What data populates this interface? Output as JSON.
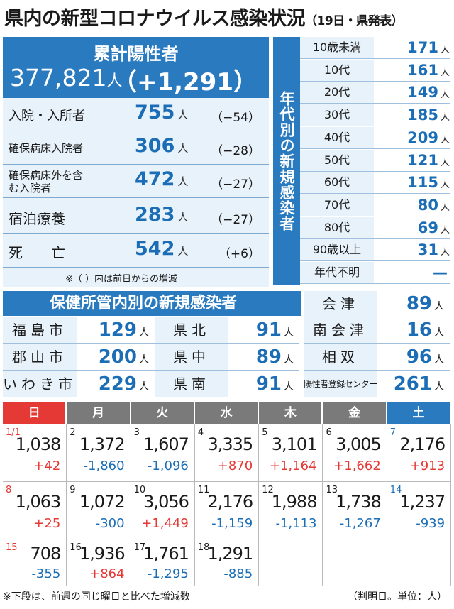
{
  "title": "県内の新型コロナウイルス感染状況",
  "subtitle": "（19日・県発表）",
  "cumulative": {
    "label": "累計陽性者",
    "total": "377,821",
    "unit": "人",
    "diff": "（+1,291）"
  },
  "status_rows": [
    {
      "label": "入院・入所者",
      "value": "755",
      "unit": "人",
      "change": "（−54）"
    },
    {
      "label": "確保病床入院者",
      "value": "306",
      "unit": "人",
      "change": "（−28）"
    },
    {
      "label": "確保病床外を含む入院者",
      "value": "472",
      "unit": "人",
      "change": "（−27）"
    },
    {
      "label": "宿泊療養",
      "value": "283",
      "unit": "人",
      "change": "（−27）"
    },
    {
      "label": "死　　亡",
      "value": "542",
      "unit": "人",
      "change": "（+6）"
    }
  ],
  "status_note": "※（ ）内は前日からの増減",
  "age_title": "年代別の新規感染者",
  "age_rows": [
    {
      "label": "10歳未満",
      "value": "171",
      "unit": "人"
    },
    {
      "label": "10代",
      "value": "161",
      "unit": "人"
    },
    {
      "label": "20代",
      "value": "149",
      "unit": "人"
    },
    {
      "label": "30代",
      "value": "185",
      "unit": "人"
    },
    {
      "label": "40代",
      "value": "209",
      "unit": "人"
    },
    {
      "label": "50代",
      "value": "121",
      "unit": "人"
    },
    {
      "label": "60代",
      "value": "115",
      "unit": "人"
    },
    {
      "label": "70代",
      "value": "80",
      "unit": "人"
    },
    {
      "label": "80代",
      "value": "69",
      "unit": "人"
    },
    {
      "label": "90歳以上",
      "value": "31",
      "unit": "人"
    },
    {
      "label": "年代不明",
      "value": "—",
      "unit": ""
    }
  ],
  "hokenjo_title": "保健所管内別の新規感染者",
  "hokenjo": [
    {
      "name": "福島市",
      "value": "129",
      "unit": "人"
    },
    {
      "name": "郡山市",
      "value": "200",
      "unit": "人"
    },
    {
      "name": "いわき市",
      "value": "229",
      "unit": "人"
    },
    {
      "name": "県北",
      "value": "91",
      "unit": "人"
    },
    {
      "name": "県中",
      "value": "89",
      "unit": "人"
    },
    {
      "name": "県南",
      "value": "91",
      "unit": "人"
    },
    {
      "name": "会津",
      "value": "89",
      "unit": "人"
    },
    {
      "name": "南会津",
      "value": "16",
      "unit": "人"
    },
    {
      "name": "相双",
      "value": "96",
      "unit": "人"
    },
    {
      "name": "陽性者登録センター",
      "value": "261",
      "unit": "人"
    }
  ],
  "weekdays": [
    "日",
    "月",
    "火",
    "水",
    "木",
    "金",
    "土"
  ],
  "header_colors": [
    "#e53935",
    "#7a7a7a",
    "#7a7a7a",
    "#7a7a7a",
    "#7a7a7a",
    "#7a7a7a",
    "#2a7ac0"
  ],
  "calendar": [
    [
      {
        "date": "1/1",
        "count": "1,038",
        "diff": "+42"
      },
      {
        "date": "2",
        "count": "1,372",
        "diff": "-1,860"
      },
      {
        "date": "3",
        "count": "1,607",
        "diff": "-1,096"
      },
      {
        "date": "4",
        "count": "3,335",
        "diff": "+870"
      },
      {
        "date": "5",
        "count": "3,101",
        "diff": "+1,164"
      },
      {
        "date": "6",
        "count": "3,005",
        "diff": "+1,662"
      },
      {
        "date": "7",
        "count": "2,176",
        "diff": "+913"
      }
    ],
    [
      {
        "date": "8",
        "count": "1,063",
        "diff": "+25"
      },
      {
        "date": "9",
        "count": "1,072",
        "diff": "-300"
      },
      {
        "date": "10",
        "count": "3,056",
        "diff": "+1,449"
      },
      {
        "date": "11",
        "count": "2,176",
        "diff": "-1,159"
      },
      {
        "date": "12",
        "count": "1,988",
        "diff": "-1,113"
      },
      {
        "date": "13",
        "count": "1,738",
        "diff": "-1,267"
      },
      {
        "date": "14",
        "count": "1,237",
        "diff": "-939"
      }
    ],
    [
      {
        "date": "15",
        "count": "708",
        "diff": "-355"
      },
      {
        "date": "16",
        "count": "1,936",
        "diff": "+864"
      },
      {
        "date": "17",
        "count": "1,761",
        "diff": "-1,295"
      },
      {
        "date": "18",
        "count": "1,291",
        "diff": "-885"
      },
      {
        "date": "",
        "count": "",
        "diff": ""
      },
      {
        "date": "",
        "count": "",
        "diff": ""
      },
      {
        "date": "",
        "count": "",
        "diff": ""
      }
    ]
  ],
  "footnote_left": "※下段は、前週の同じ曜日と比べた増減数",
  "footnote_right": "（判明日。単位：人）"
}
